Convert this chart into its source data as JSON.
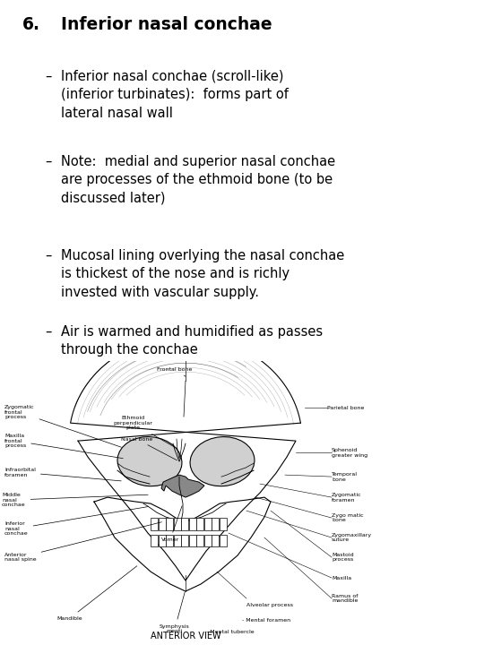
{
  "bg_color": "#ffffff",
  "title_number": "6.",
  "title_text": "Inferior nasal conchae",
  "title_fontsize": 13.5,
  "bullet_fontsize": 10.5,
  "bullets": [
    "Inferior nasal conchae (scroll-like)\n(inferior turbinates):  forms part of\nlateral nasal wall",
    "Note:  medial and superior nasal conchae\nare processes of the ethmoid bone (to be\ndiscussed later)",
    "Mucosal lining overlying the nasal conchae\nis thickest of the nose and is richly\ninvested with vascular supply.",
    "Air is warmed and humidified as passes\nthrough the conchae"
  ],
  "image_caption": "ANTERIOR VIEW"
}
